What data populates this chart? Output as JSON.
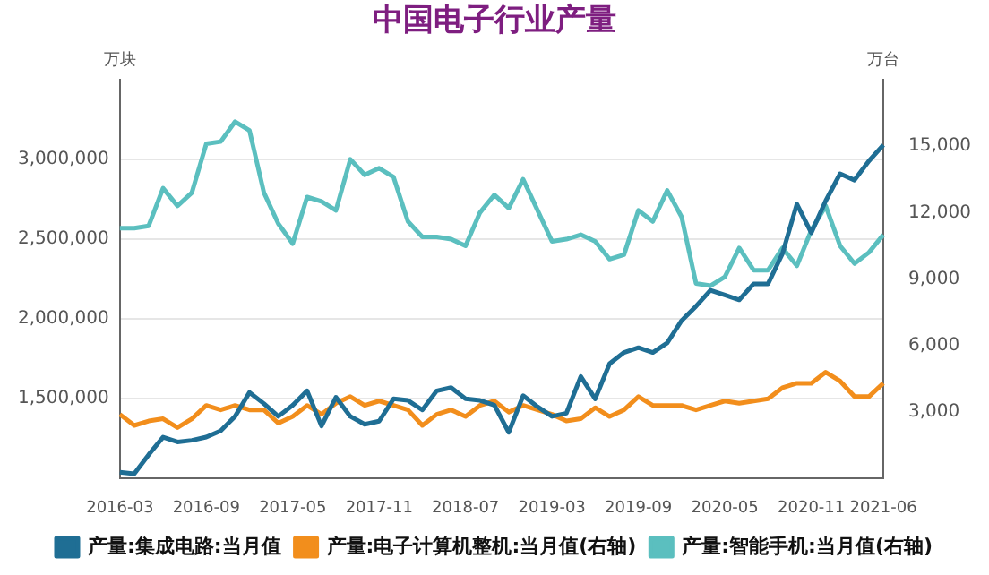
{
  "chart_data": {
    "type": "line",
    "title": "中国电子行业产量",
    "ylabel": "万块",
    "y2label": "万台",
    "categories": [
      "2016-03",
      null,
      null,
      null,
      null,
      null,
      "2016-09",
      null,
      null,
      null,
      null,
      null,
      "2017-05",
      null,
      null,
      null,
      null,
      null,
      "2017-11",
      null,
      null,
      null,
      null,
      null,
      "2018-07",
      null,
      null,
      null,
      null,
      null,
      "2019-03",
      null,
      null,
      null,
      null,
      null,
      "2019-09",
      null,
      null,
      null,
      null,
      null,
      "2020-05",
      null,
      null,
      null,
      null,
      null,
      "2020-11",
      null,
      null,
      null,
      null,
      "2021-06"
    ],
    "series": [
      {
        "name": "产量:集成电路:当月值",
        "color": "#1f6e94",
        "values": [
          1040000,
          1030000,
          1150000,
          1260000,
          1230000,
          1240000,
          1260000,
          1300000,
          1390000,
          1540000,
          1470000,
          1390000,
          1460000,
          1550000,
          1330000,
          1510000,
          1390000,
          1340000,
          1360000,
          1500000,
          1490000,
          1430000,
          1550000,
          1570000,
          1500000,
          1490000,
          1460000,
          1290000,
          1520000,
          1450000,
          1390000,
          1410000,
          1640000,
          1500000,
          1720000,
          1790000,
          1820000,
          1790000,
          1850000,
          1990000,
          2080000,
          2180000,
          2150000,
          2120000,
          2220000,
          2220000,
          2410000,
          2720000,
          2540000,
          2740000,
          2910000,
          2870000,
          2990000,
          3090000
        ]
      },
      {
        "name": "产量:电子计算机整机:当月值(右轴)",
        "color": "#f28e1c",
        "axis": "y2",
        "values": [
          2900,
          2400,
          2600,
          2700,
          2300,
          2700,
          3300,
          3100,
          3300,
          3100,
          3100,
          2500,
          2800,
          3300,
          2900,
          3400,
          3700,
          3300,
          3500,
          3300,
          3100,
          2400,
          2900,
          3100,
          2800,
          3300,
          3500,
          3000,
          3300,
          3100,
          2900,
          2600,
          2700,
          3200,
          2800,
          3100,
          3700,
          3300,
          3300,
          3300,
          3100,
          3300,
          3500,
          3400,
          3500,
          3600,
          4100,
          4300,
          4300,
          4800,
          4400,
          3700,
          3700,
          4300
        ]
      },
      {
        "name": "产量:智能手机:当月值(右轴)",
        "color": "#5bbfbf",
        "axis": "y2",
        "values": [
          11300,
          11300,
          11400,
          13100,
          12300,
          12900,
          15100,
          15200,
          16100,
          15700,
          12900,
          11500,
          10600,
          12700,
          12500,
          12100,
          14400,
          13700,
          14000,
          13600,
          11600,
          10900,
          10900,
          10800,
          10500,
          12000,
          12800,
          12200,
          13500,
          12100,
          10700,
          10800,
          11000,
          10700,
          9900,
          10100,
          12100,
          11600,
          13000,
          11800,
          8800,
          8700,
          9100,
          10400,
          9400,
          9400,
          10400,
          9600,
          11200,
          12300,
          10500,
          9700,
          10200,
          11000
        ]
      }
    ],
    "ylim": [
      1000000,
      3500000
    ],
    "yticks": [
      {
        "value": 1500000,
        "label": "1,500,000"
      },
      {
        "value": 2000000,
        "label": "2,000,000"
      },
      {
        "value": 2500000,
        "label": "2,500,000"
      },
      {
        "value": 3000000,
        "label": "3,000,000"
      }
    ],
    "y2lim": [
      0,
      18000
    ],
    "y2ticks": [
      {
        "value": 3000,
        "label": "3,000"
      },
      {
        "value": 6000,
        "label": "6,000"
      },
      {
        "value": 9000,
        "label": "9,000"
      },
      {
        "value": 12000,
        "label": "12,000"
      },
      {
        "value": 15000,
        "label": "15,000"
      }
    ],
    "grid": "y",
    "legend": "bottom",
    "marker": "none",
    "line_style": "solid"
  }
}
